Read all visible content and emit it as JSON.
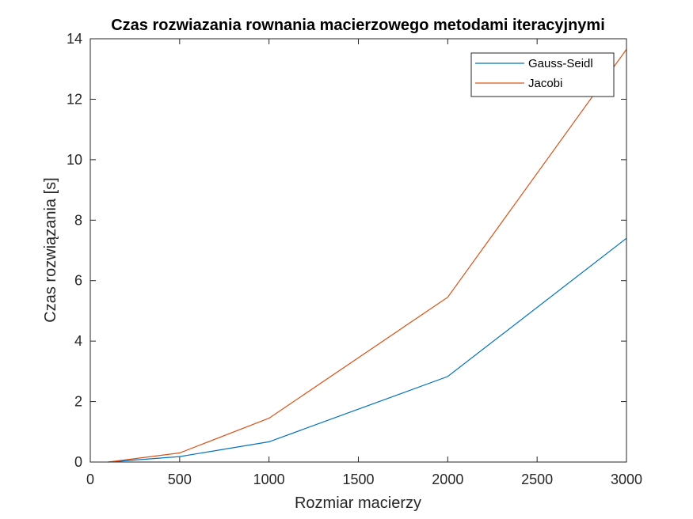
{
  "chart_data": {
    "type": "line",
    "title": "Czas rozwiazania rownania macierzowego metodami iteracyjnymi",
    "xlabel": "Rozmiar macierzy",
    "ylabel": "Czas rozwiązania [s]",
    "xlim": [
      0,
      3000
    ],
    "ylim": [
      0,
      14
    ],
    "xticks": [
      0,
      500,
      1000,
      1500,
      2000,
      2500,
      3000
    ],
    "yticks": [
      0,
      2,
      4,
      6,
      8,
      10,
      12,
      14
    ],
    "grid": false,
    "legend_position": "top-right",
    "series": [
      {
        "name": "Gauss-Seidl",
        "color": "#0072BD",
        "x": [
          100,
          500,
          1000,
          2000,
          3000
        ],
        "y": [
          0.0,
          0.18,
          0.67,
          2.83,
          7.4
        ]
      },
      {
        "name": "Jacobi",
        "color": "#D95319",
        "x": [
          100,
          500,
          1000,
          2000,
          3000
        ],
        "y": [
          0.0,
          0.3,
          1.45,
          5.45,
          13.65
        ]
      }
    ]
  }
}
